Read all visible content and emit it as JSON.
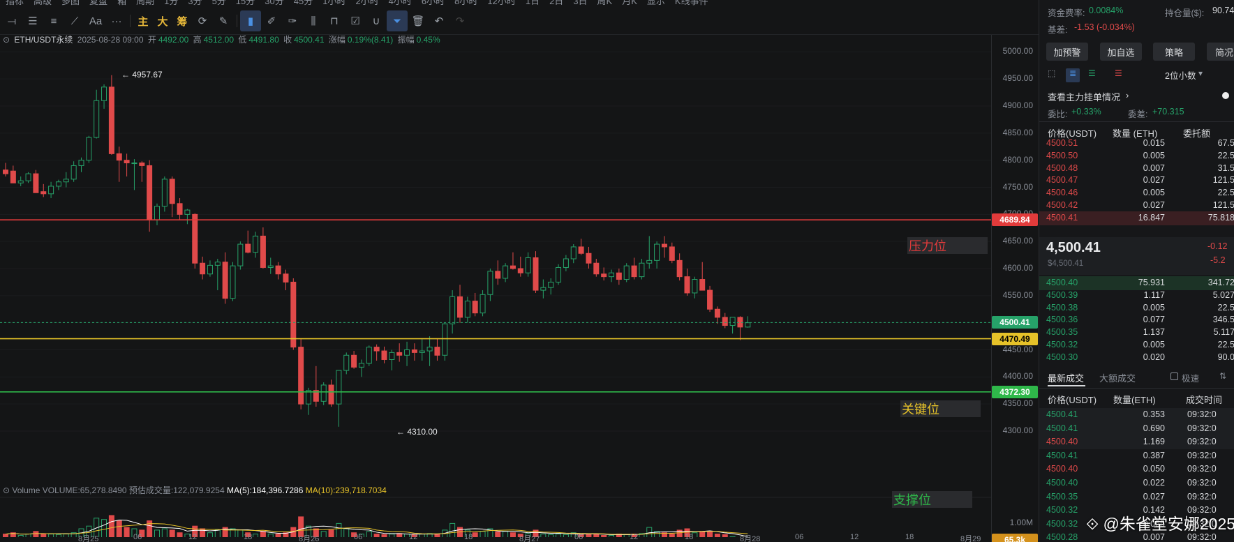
{
  "toolbar": {
    "top_items": [
      "指标",
      "高级",
      "多图",
      "复盘",
      "箱",
      "周期",
      "1分",
      "3分",
      "5分",
      "15分",
      "30分",
      "45分",
      "1小时",
      "2小时",
      "4小时",
      "6小时",
      "8小时",
      "12小时",
      "1日",
      "2日",
      "3日",
      "周K",
      "月K",
      "显示",
      "K线事件"
    ],
    "hl_labels": [
      "主",
      "大",
      "筹"
    ],
    "aa": "Aa",
    "more": "···"
  },
  "info": {
    "symbol": "ETH/USDT永续",
    "time": "2025-08-28 09:00",
    "open_label": "开",
    "open": "4492.00",
    "high_label": "高",
    "high": "4512.00",
    "low_label": "低",
    "low": "4491.80",
    "close_label": "收",
    "close": "4500.41",
    "chg_label": "涨幅",
    "chg": "0.19%(8.41)",
    "amp_label": "振幅",
    "amp": "0.45%"
  },
  "volume": {
    "label": "Volume",
    "vol": "VOLUME:65,278.8490",
    "est": "预估成交量:122,079.9254",
    "ma5": "MA(5):184,396.7286",
    "ma10": "MA(10):239,718.7034",
    "scale": "1.00M",
    "tag": "65.3k"
  },
  "price_axis": {
    "ticks": [
      "5000.00",
      "4950.00",
      "4900.00",
      "4850.00",
      "4800.00",
      "4750.00",
      "4700.00",
      "4650.00",
      "4600.00",
      "4550.00",
      "4500.00",
      "4450.00",
      "4400.00",
      "4350.00",
      "4300.00"
    ],
    "tags": {
      "resistance": "4689.84",
      "current": "4500.41",
      "key": "4470.49",
      "support": "4372.30"
    }
  },
  "annotations": {
    "high_mark": "4957.67",
    "low_mark": "4310.00",
    "resistance_label": "压力位",
    "key_label": "关键位",
    "support_label": "支撑位"
  },
  "x_axis": [
    "8月25",
    "06",
    "12",
    "18",
    "8月26",
    "06",
    "12",
    "18",
    "8月27",
    "06",
    "12",
    "18",
    "8月28",
    "06",
    "12",
    "18",
    "8月29"
  ],
  "colors": {
    "up": "#26a269",
    "down": "#e04a4a",
    "resistance": "#e23b3b",
    "key": "#e6c229",
    "support": "#2fb84a"
  },
  "sidebar": {
    "funding_label": "资金费率:",
    "funding": "0.0084%",
    "position_label": "持仓量($):",
    "position": "90.74",
    "basis_label": "基差:",
    "basis": "-1.53 (-0.034%)",
    "buttons": [
      "加预警",
      "加自选",
      "策略",
      "简况"
    ],
    "decimals": "2位小数",
    "depth_link": "查看主力挂单情况",
    "ratio_label": "委比:",
    "ratio": "+0.33%",
    "diff_label": "委差:",
    "diff": "+70.315",
    "ob_headers": [
      "价格(USDT)",
      "数量 (ETH)",
      "委托额"
    ],
    "asks": [
      [
        "4500.51",
        "0.015",
        "67.5"
      ],
      [
        "4500.50",
        "0.005",
        "22.5"
      ],
      [
        "4500.48",
        "0.007",
        "31.5"
      ],
      [
        "4500.47",
        "0.027",
        "121.5"
      ],
      [
        "4500.46",
        "0.005",
        "22.5"
      ],
      [
        "4500.42",
        "0.027",
        "121.5"
      ],
      [
        "4500.41",
        "16.847",
        "75.818"
      ]
    ],
    "last_price": "4,500.41",
    "last_price_sub": "$4,500.41",
    "last_chg": "-0.12",
    "last_chg2": "-5.2",
    "bids": [
      [
        "4500.40",
        "75.931",
        "341.72"
      ],
      [
        "4500.39",
        "1.117",
        "5.027"
      ],
      [
        "4500.38",
        "0.005",
        "22.5"
      ],
      [
        "4500.36",
        "0.077",
        "346.5"
      ],
      [
        "4500.35",
        "1.137",
        "5.117"
      ],
      [
        "4500.32",
        "0.005",
        "22.5"
      ],
      [
        "4500.30",
        "0.020",
        "90.0"
      ]
    ],
    "trades_tab1": "最新成交",
    "trades_tab2": "大额成交",
    "fast_label": "极速",
    "trade_headers": [
      "价格(USDT)",
      "数量(ETH)",
      "成交时间"
    ],
    "trades": [
      [
        "4500.41",
        "0.353",
        "09:32:0",
        "g"
      ],
      [
        "4500.41",
        "0.690",
        "09:32:0",
        "g"
      ],
      [
        "4500.40",
        "1.169",
        "09:32:0",
        "r"
      ],
      [
        "4500.41",
        "0.387",
        "09:32:0",
        "g"
      ],
      [
        "4500.40",
        "0.050",
        "09:32:0",
        "r"
      ],
      [
        "4500.40",
        "0.022",
        "09:32:0",
        "g"
      ],
      [
        "4500.35",
        "0.027",
        "09:32:0",
        "g"
      ],
      [
        "4500.32",
        "0.142",
        "09:32:0",
        "g"
      ],
      [
        "4500.32",
        "0.055",
        "09:32:0",
        "g"
      ],
      [
        "4500.28",
        "0.007",
        "09:32:0",
        "g"
      ]
    ]
  },
  "watermark": "@朱雀堂安娜2025"
}
